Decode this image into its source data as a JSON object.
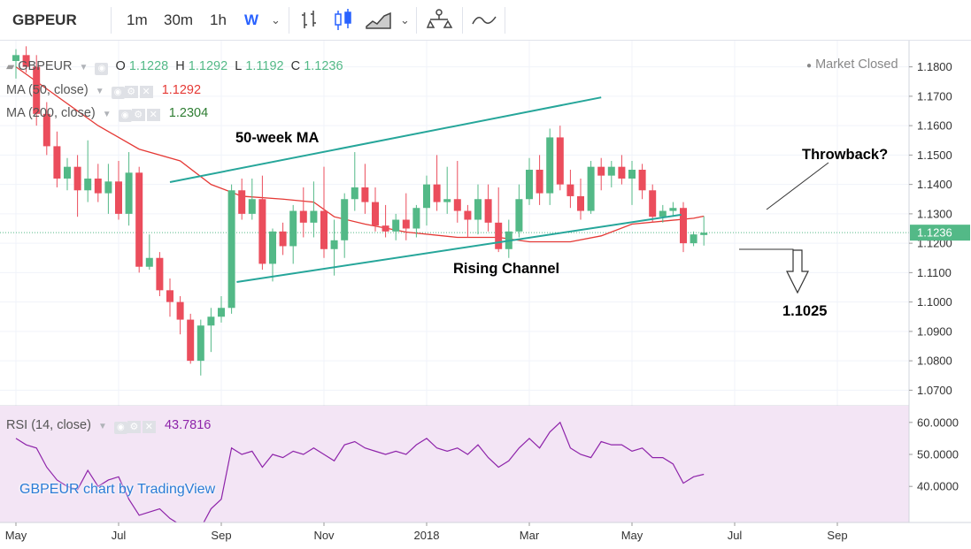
{
  "toolbar": {
    "symbol": "GBPEUR",
    "intervals": [
      "1m",
      "30m",
      "1h",
      "W"
    ],
    "active_interval": "W",
    "tools": [
      "bar-chart-icon",
      "candlestick-icon",
      "area-chart-icon",
      "compare-icon",
      "indicators-icon"
    ]
  },
  "legend": {
    "symbol": "GBPEUR",
    "open_label": "O",
    "open": "1.1228",
    "high_label": "H",
    "high": "1.1292",
    "low_label": "L",
    "low": "1.1192",
    "close_label": "C",
    "close": "1.1236",
    "status": "Market Closed",
    "ma50_label": "MA (50, close)",
    "ma50_value": "1.1292",
    "ma200_label": "MA (200, close)",
    "ma200_value": "1.2304",
    "rsi_label": "RSI (14, close)",
    "rsi_value": "43.7816"
  },
  "annotations": {
    "ma_label": "50-week MA",
    "channel_label": "Rising Channel",
    "throwback_label": "Throwback?",
    "target_label": "1.1025"
  },
  "watermark": "GBPEUR chart by TradingView",
  "colors": {
    "up": "#53b987",
    "down": "#eb4d5c",
    "ma": "#e53935",
    "rsi": "#8e24aa",
    "channel": "#26a69a",
    "rsi_bg": "#f3e5f5",
    "price_tag": "#53b987"
  },
  "chart_data": {
    "type": "candlestick",
    "title": "GBPEUR",
    "interval": "W",
    "y_axis": {
      "ylim": [
        1.065,
        1.185
      ],
      "ticks": [
        "1.1800",
        "1.1700",
        "1.1600",
        "1.1500",
        "1.1400",
        "1.1300",
        "1.1200",
        "1.1100",
        "1.1000",
        "1.0900",
        "1.0800",
        "1.0700"
      ]
    },
    "x_axis": {
      "tick_labels": [
        "May",
        "Jul",
        "Sep",
        "Nov",
        "2018",
        "Mar",
        "May",
        "Jul",
        "Sep"
      ],
      "tick_week_index": [
        0,
        10,
        20,
        30,
        40,
        50,
        60,
        70,
        80
      ]
    },
    "last_price": "1.1236",
    "candles": [
      {
        "o": 1.182,
        "h": 1.186,
        "l": 1.176,
        "c": 1.184
      },
      {
        "o": 1.184,
        "h": 1.187,
        "l": 1.178,
        "c": 1.18
      },
      {
        "o": 1.18,
        "h": 1.184,
        "l": 1.16,
        "c": 1.164
      },
      {
        "o": 1.164,
        "h": 1.168,
        "l": 1.15,
        "c": 1.153
      },
      {
        "o": 1.153,
        "h": 1.158,
        "l": 1.139,
        "c": 1.142
      },
      {
        "o": 1.142,
        "h": 1.149,
        "l": 1.138,
        "c": 1.146
      },
      {
        "o": 1.146,
        "h": 1.15,
        "l": 1.129,
        "c": 1.138
      },
      {
        "o": 1.138,
        "h": 1.155,
        "l": 1.134,
        "c": 1.142
      },
      {
        "o": 1.142,
        "h": 1.147,
        "l": 1.134,
        "c": 1.137
      },
      {
        "o": 1.137,
        "h": 1.147,
        "l": 1.13,
        "c": 1.141
      },
      {
        "o": 1.141,
        "h": 1.148,
        "l": 1.128,
        "c": 1.13
      },
      {
        "o": 1.13,
        "h": 1.151,
        "l": 1.126,
        "c": 1.144
      },
      {
        "o": 1.144,
        "h": 1.146,
        "l": 1.11,
        "c": 1.112
      },
      {
        "o": 1.112,
        "h": 1.123,
        "l": 1.111,
        "c": 1.115
      },
      {
        "o": 1.115,
        "h": 1.117,
        "l": 1.102,
        "c": 1.104
      },
      {
        "o": 1.104,
        "h": 1.108,
        "l": 1.095,
        "c": 1.1
      },
      {
        "o": 1.1,
        "h": 1.102,
        "l": 1.089,
        "c": 1.094
      },
      {
        "o": 1.094,
        "h": 1.096,
        "l": 1.079,
        "c": 1.08
      },
      {
        "o": 1.08,
        "h": 1.094,
        "l": 1.075,
        "c": 1.092
      },
      {
        "o": 1.092,
        "h": 1.098,
        "l": 1.083,
        "c": 1.095
      },
      {
        "o": 1.095,
        "h": 1.102,
        "l": 1.093,
        "c": 1.098
      },
      {
        "o": 1.098,
        "h": 1.14,
        "l": 1.096,
        "c": 1.138
      },
      {
        "o": 1.138,
        "h": 1.142,
        "l": 1.128,
        "c": 1.13
      },
      {
        "o": 1.13,
        "h": 1.142,
        "l": 1.128,
        "c": 1.135
      },
      {
        "o": 1.135,
        "h": 1.143,
        "l": 1.111,
        "c": 1.113
      },
      {
        "o": 1.113,
        "h": 1.125,
        "l": 1.107,
        "c": 1.124
      },
      {
        "o": 1.124,
        "h": 1.127,
        "l": 1.116,
        "c": 1.119
      },
      {
        "o": 1.119,
        "h": 1.133,
        "l": 1.113,
        "c": 1.131
      },
      {
        "o": 1.131,
        "h": 1.139,
        "l": 1.122,
        "c": 1.127
      },
      {
        "o": 1.127,
        "h": 1.141,
        "l": 1.122,
        "c": 1.131
      },
      {
        "o": 1.131,
        "h": 1.146,
        "l": 1.115,
        "c": 1.118
      },
      {
        "o": 1.118,
        "h": 1.128,
        "l": 1.109,
        "c": 1.121
      },
      {
        "o": 1.121,
        "h": 1.137,
        "l": 1.115,
        "c": 1.135
      },
      {
        "o": 1.135,
        "h": 1.151,
        "l": 1.131,
        "c": 1.139
      },
      {
        "o": 1.139,
        "h": 1.147,
        "l": 1.13,
        "c": 1.134
      },
      {
        "o": 1.134,
        "h": 1.139,
        "l": 1.124,
        "c": 1.126
      },
      {
        "o": 1.126,
        "h": 1.133,
        "l": 1.122,
        "c": 1.124
      },
      {
        "o": 1.124,
        "h": 1.13,
        "l": 1.121,
        "c": 1.128
      },
      {
        "o": 1.128,
        "h": 1.137,
        "l": 1.121,
        "c": 1.125
      },
      {
        "o": 1.125,
        "h": 1.133,
        "l": 1.122,
        "c": 1.132
      },
      {
        "o": 1.132,
        "h": 1.143,
        "l": 1.126,
        "c": 1.14
      },
      {
        "o": 1.14,
        "h": 1.15,
        "l": 1.131,
        "c": 1.134
      },
      {
        "o": 1.134,
        "h": 1.146,
        "l": 1.13,
        "c": 1.135
      },
      {
        "o": 1.135,
        "h": 1.148,
        "l": 1.127,
        "c": 1.131
      },
      {
        "o": 1.131,
        "h": 1.133,
        "l": 1.122,
        "c": 1.128
      },
      {
        "o": 1.128,
        "h": 1.14,
        "l": 1.123,
        "c": 1.135
      },
      {
        "o": 1.135,
        "h": 1.14,
        "l": 1.124,
        "c": 1.127
      },
      {
        "o": 1.127,
        "h": 1.139,
        "l": 1.117,
        "c": 1.118
      },
      {
        "o": 1.118,
        "h": 1.128,
        "l": 1.115,
        "c": 1.124
      },
      {
        "o": 1.124,
        "h": 1.14,
        "l": 1.122,
        "c": 1.135
      },
      {
        "o": 1.135,
        "h": 1.149,
        "l": 1.133,
        "c": 1.145
      },
      {
        "o": 1.145,
        "h": 1.15,
        "l": 1.133,
        "c": 1.137
      },
      {
        "o": 1.137,
        "h": 1.159,
        "l": 1.133,
        "c": 1.156
      },
      {
        "o": 1.156,
        "h": 1.16,
        "l": 1.138,
        "c": 1.14
      },
      {
        "o": 1.14,
        "h": 1.145,
        "l": 1.132,
        "c": 1.136
      },
      {
        "o": 1.136,
        "h": 1.142,
        "l": 1.128,
        "c": 1.131
      },
      {
        "o": 1.131,
        "h": 1.148,
        "l": 1.13,
        "c": 1.146
      },
      {
        "o": 1.146,
        "h": 1.149,
        "l": 1.138,
        "c": 1.143
      },
      {
        "o": 1.143,
        "h": 1.148,
        "l": 1.139,
        "c": 1.146
      },
      {
        "o": 1.146,
        "h": 1.15,
        "l": 1.14,
        "c": 1.142
      },
      {
        "o": 1.142,
        "h": 1.148,
        "l": 1.133,
        "c": 1.145
      },
      {
        "o": 1.145,
        "h": 1.147,
        "l": 1.135,
        "c": 1.138
      },
      {
        "o": 1.138,
        "h": 1.14,
        "l": 1.127,
        "c": 1.129
      },
      {
        "o": 1.129,
        "h": 1.133,
        "l": 1.127,
        "c": 1.131
      },
      {
        "o": 1.131,
        "h": 1.134,
        "l": 1.129,
        "c": 1.132
      },
      {
        "o": 1.132,
        "h": 1.134,
        "l": 1.117,
        "c": 1.12
      },
      {
        "o": 1.12,
        "h": 1.124,
        "l": 1.119,
        "c": 1.123
      },
      {
        "o": 1.1228,
        "h": 1.1292,
        "l": 1.1192,
        "c": 1.1236
      }
    ],
    "ma50": [
      [
        0,
        1.18
      ],
      [
        4,
        1.17
      ],
      [
        8,
        1.16
      ],
      [
        12,
        1.152
      ],
      [
        16,
        1.148
      ],
      [
        19,
        1.14
      ],
      [
        22,
        1.136
      ],
      [
        26,
        1.135
      ],
      [
        29,
        1.134
      ],
      [
        31,
        1.129
      ],
      [
        34,
        1.1265
      ],
      [
        38,
        1.1238
      ],
      [
        43,
        1.122
      ],
      [
        47,
        1.122
      ],
      [
        50,
        1.1205
      ],
      [
        54,
        1.1205
      ],
      [
        57,
        1.1225
      ],
      [
        60,
        1.1265
      ],
      [
        63,
        1.1275
      ],
      [
        66,
        1.1285
      ],
      [
        67,
        1.1292
      ]
    ],
    "channel_upper": [
      [
        15.0,
        1.1408
      ],
      [
        57.0,
        1.1696
      ]
    ],
    "channel_lower": [
      [
        21.5,
        1.1068
      ],
      [
        64.8,
        1.1297
      ]
    ],
    "rsi": [
      [
        0,
        55
      ],
      [
        1,
        53
      ],
      [
        2,
        52
      ],
      [
        3,
        46
      ],
      [
        4,
        42
      ],
      [
        5,
        40
      ],
      [
        6,
        39
      ],
      [
        7,
        45
      ],
      [
        8,
        40
      ],
      [
        9,
        42
      ],
      [
        10,
        43
      ],
      [
        11,
        36
      ],
      [
        12,
        31
      ],
      [
        13,
        32
      ],
      [
        14,
        33
      ],
      [
        15,
        30
      ],
      [
        16,
        28
      ],
      [
        17,
        25
      ],
      [
        18,
        27
      ],
      [
        19,
        33
      ],
      [
        20,
        36
      ],
      [
        21,
        52
      ],
      [
        22,
        50
      ],
      [
        23,
        51
      ],
      [
        24,
        46
      ],
      [
        25,
        50
      ],
      [
        26,
        49
      ],
      [
        27,
        51
      ],
      [
        28,
        50
      ],
      [
        29,
        52
      ],
      [
        30,
        50
      ],
      [
        31,
        48
      ],
      [
        32,
        53
      ],
      [
        33,
        54
      ],
      [
        34,
        52
      ],
      [
        35,
        51
      ],
      [
        36,
        50
      ],
      [
        37,
        51
      ],
      [
        38,
        50
      ],
      [
        39,
        53
      ],
      [
        40,
        55
      ],
      [
        41,
        52
      ],
      [
        42,
        51
      ],
      [
        43,
        52
      ],
      [
        44,
        50
      ],
      [
        45,
        53
      ],
      [
        46,
        49
      ],
      [
        47,
        46
      ],
      [
        48,
        48
      ],
      [
        49,
        52
      ],
      [
        50,
        55
      ],
      [
        51,
        52
      ],
      [
        52,
        57
      ],
      [
        53,
        60
      ],
      [
        54,
        52
      ],
      [
        55,
        50
      ],
      [
        56,
        49
      ],
      [
        57,
        54
      ],
      [
        58,
        53
      ],
      [
        59,
        53
      ],
      [
        60,
        51
      ],
      [
        61,
        52
      ],
      [
        62,
        49
      ],
      [
        63,
        49
      ],
      [
        64,
        47
      ],
      [
        65,
        41
      ],
      [
        66,
        43
      ],
      [
        67,
        43.78
      ]
    ],
    "rsi_axis": {
      "ticks": [
        "60.0000",
        "50.0000",
        "40.0000"
      ]
    }
  }
}
